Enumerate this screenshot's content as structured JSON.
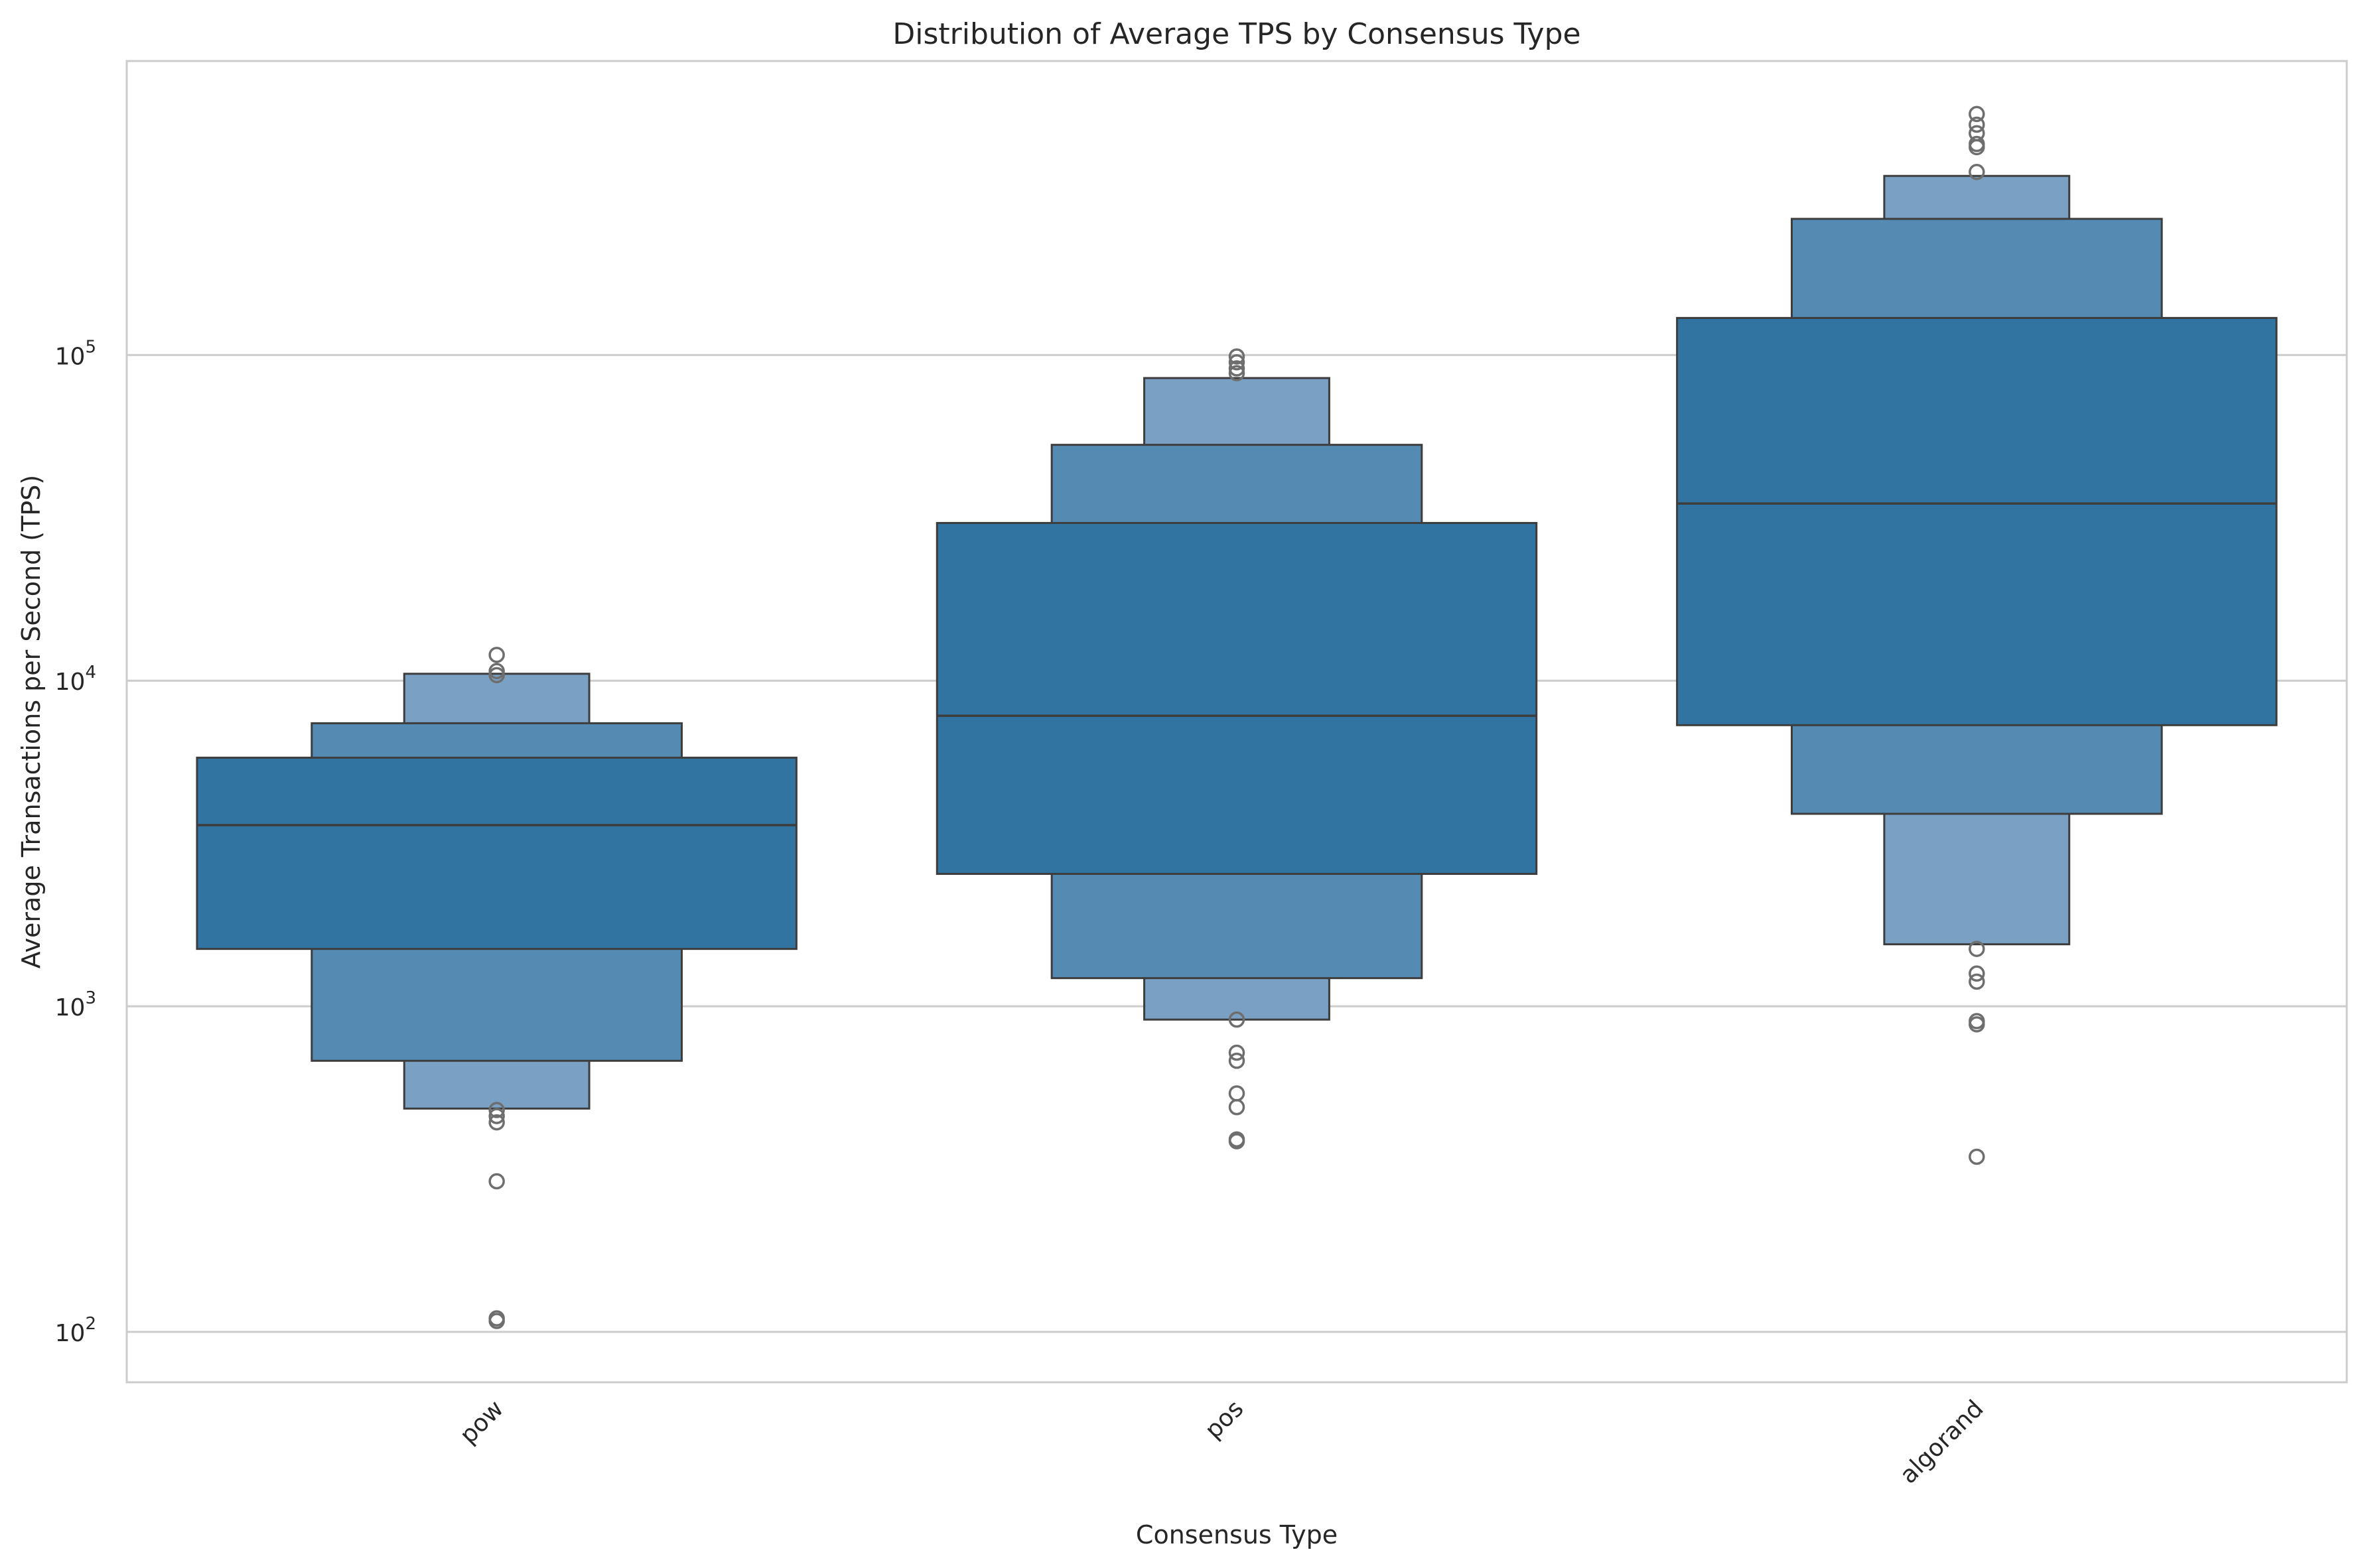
{
  "chart_data": {
    "type": "boxen",
    "title": "Distribution of Average TPS by Consensus Type",
    "xlabel": "Consensus Type",
    "ylabel": "Average Transactions per Second (TPS)",
    "yscale": "log",
    "ylim": [
      70,
      800000
    ],
    "yticks": [
      {
        "value": 100,
        "base": "10",
        "exp": "2"
      },
      {
        "value": 1000,
        "base": "10",
        "exp": "3"
      },
      {
        "value": 10000,
        "base": "10",
        "exp": "4"
      },
      {
        "value": 100000,
        "base": "10",
        "exp": "5"
      }
    ],
    "grid": true,
    "categories": [
      "pow",
      "pos",
      "algorand"
    ],
    "colors": {
      "level1": "#3274a1",
      "level2": "#558bb3",
      "level3": "#7aa1c3",
      "edge": "#3d3d3d",
      "grid": "#cccccc",
      "spine": "#cccccc",
      "outlier": "#6e6e6e"
    },
    "groups": [
      {
        "name": "pow",
        "median": 3600,
        "boxes": [
          {
            "low": 1500,
            "high": 5800
          },
          {
            "low": 680,
            "high": 7400
          },
          {
            "low": 485,
            "high": 10500
          }
        ],
        "outliers": [
          12000,
          10700,
          10400,
          480,
          460,
          440,
          290,
          110,
          108
        ]
      },
      {
        "name": "pos",
        "median": 7800,
        "boxes": [
          {
            "low": 2550,
            "high": 30500
          },
          {
            "low": 1220,
            "high": 53000
          },
          {
            "low": 910,
            "high": 85000
          }
        ],
        "outliers": [
          99000,
          95000,
          91000,
          88000,
          910,
          720,
          680,
          540,
          490,
          390,
          385
        ]
      },
      {
        "name": "algorand",
        "median": 35000,
        "boxes": [
          {
            "low": 7300,
            "high": 130000
          },
          {
            "low": 3900,
            "high": 262000
          },
          {
            "low": 1550,
            "high": 355000
          }
        ],
        "outliers": [
          550000,
          510000,
          480000,
          445000,
          435000,
          365000,
          1500,
          1260,
          1190,
          900,
          880,
          345
        ]
      }
    ]
  }
}
